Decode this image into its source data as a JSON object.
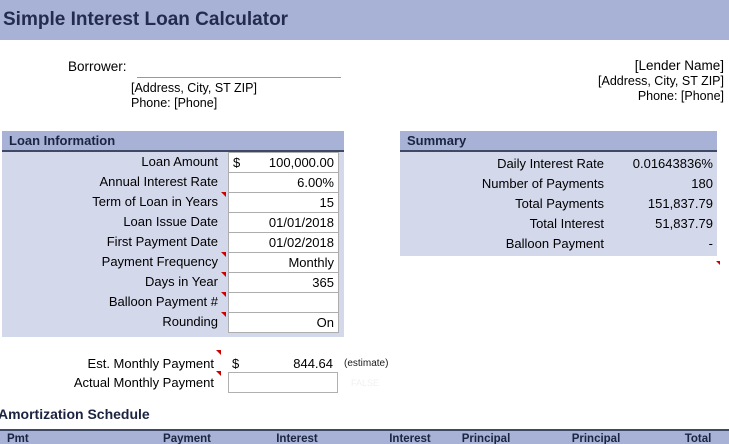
{
  "title": "Simple Interest Loan Calculator",
  "borrower": {
    "label": "Borrower:",
    "address": "[Address, City, ST  ZIP]",
    "phone": "Phone: [Phone]"
  },
  "lender": {
    "name": "[Lender Name]",
    "address": "[Address, City, ST  ZIP]",
    "phone": "Phone: [Phone]"
  },
  "loan_information": {
    "header": "Loan Information",
    "fields": [
      {
        "label": "Loan Amount",
        "prefix": "$",
        "value": "100,000.00"
      },
      {
        "label": "Annual Interest Rate",
        "value": "6.00%"
      },
      {
        "label": "Term of Loan in Years",
        "value": "15"
      },
      {
        "label": "Loan Issue Date",
        "value": "01/01/2018"
      },
      {
        "label": "First Payment Date",
        "value": "01/02/2018"
      },
      {
        "label": "Payment Frequency",
        "value": "Monthly"
      },
      {
        "label": "Days in Year",
        "value": "365"
      },
      {
        "label": "Balloon Payment #",
        "value": ""
      },
      {
        "label": "Rounding",
        "value": "On"
      }
    ]
  },
  "summary": {
    "header": "Summary",
    "fields": [
      {
        "label": "Daily Interest Rate",
        "value": "0.01643836%"
      },
      {
        "label": "Number of Payments",
        "value": "180"
      },
      {
        "label": "Total Payments",
        "value": "151,837.79"
      },
      {
        "label": "Total Interest",
        "value": "51,837.79"
      },
      {
        "label": "Balloon Payment",
        "value": "-"
      }
    ]
  },
  "payment": {
    "est_label": "Est. Monthly Payment",
    "est_currency": "$",
    "est_value": "844.64",
    "est_note": "(estimate)",
    "actual_label": "Actual Monthly Payment",
    "actual_value": "",
    "faint_text": "FALSE"
  },
  "amortization": {
    "title": "Amortization Schedule",
    "columns": [
      "Pmt",
      "Payment",
      "Interest",
      "Interest",
      "Principal",
      "Principal",
      "Total"
    ]
  },
  "colors": {
    "header_bg": "#A8B2D6",
    "panel_bg": "#D4D8EB",
    "header_text": "#1A2440",
    "comment_marker": "#CC0000",
    "cell_border": "#ADADAD"
  }
}
